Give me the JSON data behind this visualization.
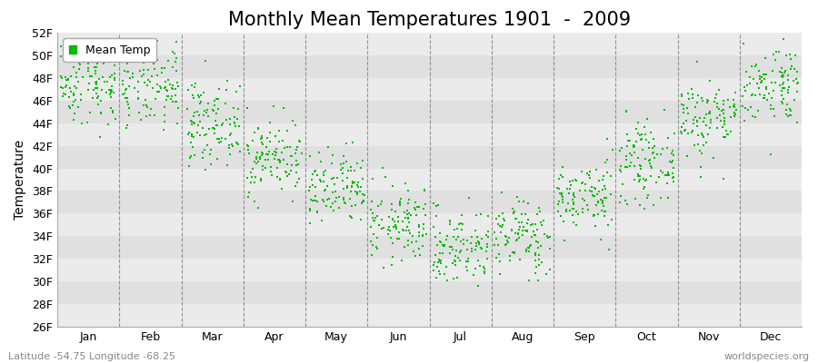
{
  "title": "Monthly Mean Temperatures 1901  -  2009",
  "ylabel": "Temperature",
  "xlabel_months": [
    "Jan",
    "Feb",
    "Mar",
    "Apr",
    "May",
    "Jun",
    "Jul",
    "Aug",
    "Sep",
    "Oct",
    "Nov",
    "Dec"
  ],
  "subtitle_left": "Latitude -54.75 Longitude -68.25",
  "subtitle_right": "worldspecies.org",
  "ylim": [
    26,
    52
  ],
  "yticks": [
    26,
    28,
    30,
    32,
    34,
    36,
    38,
    40,
    42,
    44,
    46,
    48,
    50,
    52
  ],
  "ytick_labels": [
    "26F",
    "28F",
    "30F",
    "32F",
    "34F",
    "36F",
    "38F",
    "40F",
    "42F",
    "44F",
    "46F",
    "48F",
    "50F",
    "52F"
  ],
  "mean_temps_F": [
    47.5,
    47.0,
    44.0,
    41.0,
    38.0,
    35.0,
    33.0,
    34.0,
    37.5,
    40.5,
    44.5,
    47.5
  ],
  "std_temps_F": [
    1.8,
    1.8,
    1.8,
    1.7,
    1.7,
    1.7,
    1.7,
    1.7,
    1.6,
    1.7,
    1.8,
    1.8
  ],
  "n_years": 109,
  "dot_color": "#00bb00",
  "dot_size": 4,
  "stripe_colors": [
    "#ebebeb",
    "#e0e0e0"
  ],
  "title_fontsize": 15,
  "axis_label_fontsize": 10,
  "tick_fontsize": 9,
  "legend_fontsize": 9
}
